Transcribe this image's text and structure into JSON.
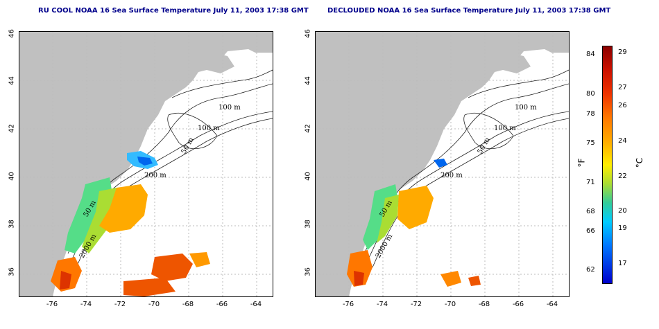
{
  "titles": {
    "left": "RU COOL NOAA 16 Sea Surface Temperature July 11, 2003 17:38 GMT",
    "right": "DECLOUDED NOAA 16 Sea Surface Temperature July 11, 2003 17:38 GMT"
  },
  "lat_ticks": [
    "46",
    "44",
    "42",
    "40",
    "38",
    "36"
  ],
  "lon_ticks": [
    "-76",
    "-74",
    "-72",
    "-70",
    "-68",
    "-66",
    "-64"
  ],
  "contour_labels": [
    "100 m",
    "100 m",
    "50 m",
    "200 m",
    "50 m",
    "2000 m"
  ],
  "colorbar": {
    "fahrenheit_ticks": [
      "84",
      "80",
      "78",
      "75",
      "71",
      "68",
      "66",
      "62"
    ],
    "celsius_ticks": [
      "29",
      "27",
      "26",
      "24",
      "22",
      "20",
      "19",
      "17"
    ],
    "fahrenheit_unit": "°F",
    "celsius_unit": "°C"
  },
  "colors": {
    "land": "#c0c0c0",
    "title": "#00008b"
  }
}
